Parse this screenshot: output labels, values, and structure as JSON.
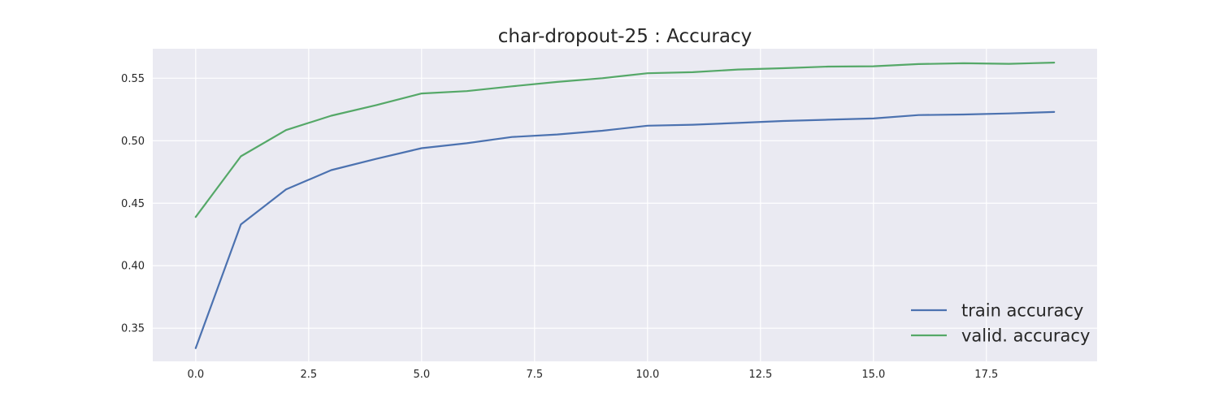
{
  "chart_data": {
    "type": "line",
    "title": "char-dropout-25 : Accuracy",
    "xlabel": "",
    "ylabel": "",
    "xlim": [
      -0.95,
      19.95
    ],
    "ylim": [
      0.3235,
      0.5736
    ],
    "x_ticks": [
      0.0,
      2.5,
      5.0,
      7.5,
      10.0,
      12.5,
      15.0,
      17.5
    ],
    "x_tick_labels": [
      "0.0",
      "2.5",
      "5.0",
      "7.5",
      "10.0",
      "12.5",
      "15.0",
      "17.5"
    ],
    "y_ticks": [
      0.35,
      0.4,
      0.45,
      0.5,
      0.55
    ],
    "y_tick_labels": [
      "0.35",
      "0.40",
      "0.45",
      "0.50",
      "0.55"
    ],
    "grid": true,
    "legend_position": "lower-right",
    "x": [
      0,
      1,
      2,
      3,
      4,
      5,
      6,
      7,
      8,
      9,
      10,
      11,
      12,
      13,
      14,
      15,
      16,
      17,
      18,
      19
    ],
    "series": [
      {
        "name": "train accuracy",
        "color": "#4c72b0",
        "values": [
          0.334,
          0.433,
          0.461,
          0.4765,
          0.4855,
          0.494,
          0.498,
          0.503,
          0.505,
          0.508,
          0.512,
          0.5128,
          0.5142,
          0.5158,
          0.5168,
          0.5178,
          0.5205,
          0.521,
          0.5218,
          0.523
        ]
      },
      {
        "name": "valid. accuracy",
        "color": "#55a868",
        "values": [
          0.439,
          0.4875,
          0.5085,
          0.52,
          0.5285,
          0.5378,
          0.5397,
          0.5435,
          0.547,
          0.55,
          0.554,
          0.5548,
          0.557,
          0.558,
          0.5593,
          0.5596,
          0.5613,
          0.562,
          0.5615,
          0.5625
        ]
      }
    ]
  }
}
